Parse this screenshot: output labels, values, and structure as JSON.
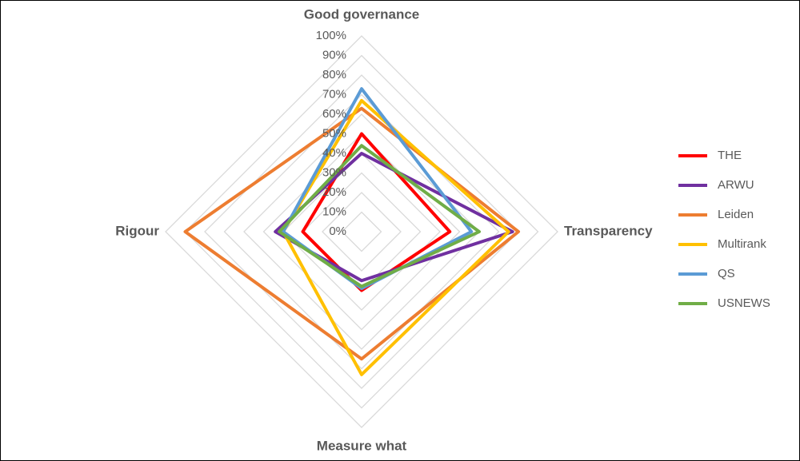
{
  "chart_data": {
    "type": "radar",
    "categories": [
      "Good governance",
      "Transparency",
      "Measure what",
      "Rigour"
    ],
    "series": [
      {
        "name": "THE",
        "color": "#ff0000",
        "values": [
          50,
          45,
          30,
          30
        ]
      },
      {
        "name": "ARWU",
        "color": "#7030a0",
        "values": [
          40,
          77,
          25,
          44
        ]
      },
      {
        "name": "Leiden",
        "color": "#ed7d31",
        "values": [
          63,
          80,
          65,
          90
        ]
      },
      {
        "name": "Multirank",
        "color": "#ffc000",
        "values": [
          67,
          75,
          73,
          40
        ]
      },
      {
        "name": "QS",
        "color": "#5b9bd5",
        "values": [
          73,
          56,
          29,
          40
        ]
      },
      {
        "name": "USNEWS",
        "color": "#70ad47",
        "values": [
          44,
          60,
          28,
          42
        ]
      }
    ],
    "ylim": [
      0,
      100
    ],
    "yticks": [
      {
        "value": 0,
        "label": "0%"
      },
      {
        "value": 10,
        "label": "10%"
      },
      {
        "value": 20,
        "label": "20%"
      },
      {
        "value": 30,
        "label": "30%"
      },
      {
        "value": 40,
        "label": "40%"
      },
      {
        "value": 50,
        "label": "50%"
      },
      {
        "value": 60,
        "label": "60%"
      },
      {
        "value": 70,
        "label": "70%"
      },
      {
        "value": 80,
        "label": "80%"
      },
      {
        "value": 90,
        "label": "90%"
      },
      {
        "value": 100,
        "label": "100%"
      }
    ],
    "grid": true,
    "legend": "right"
  }
}
